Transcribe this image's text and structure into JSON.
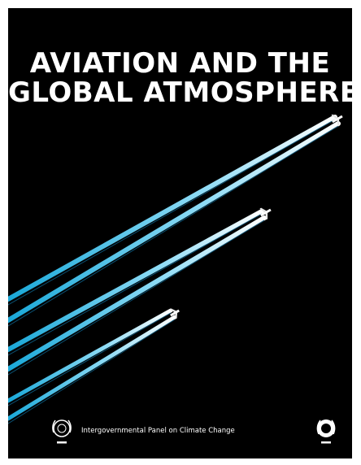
{
  "book": {
    "title_lines": [
      "AVIATION AND THE",
      "GLOBAL ATMOSPHERE"
    ],
    "publisher_text": "Intergovernmental Panel on Climate Change",
    "emblems": [
      {
        "name": "wmo-emblem",
        "icon": "wmo-logo"
      },
      {
        "name": "unep-emblem",
        "icon": "unep-logo"
      }
    ],
    "colors": {
      "background": "#000000",
      "title": "#ffffff",
      "contrail_blue": "#2bb6e3",
      "contrail_light": "#cfefff"
    }
  }
}
